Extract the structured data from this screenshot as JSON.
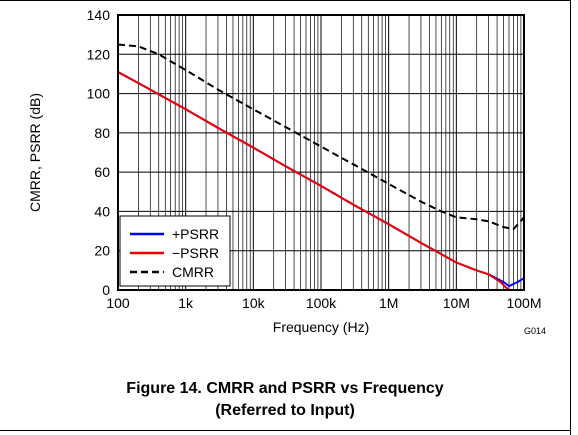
{
  "figure": {
    "caption_line1": "Figure 14. CMRR and PSRR vs Frequency",
    "caption_line2": "(Referred to Input)",
    "graph_id": "G014"
  },
  "chart_data": {
    "type": "line",
    "xlabel": "Frequency (Hz)",
    "ylabel": "CMRR, PSRR (dB)",
    "xscale": "log",
    "xlim": [
      100,
      100000000
    ],
    "ylim": [
      0,
      140
    ],
    "grid": true,
    "legend_position": "bottom-left",
    "x_ticks": [
      {
        "v": 100,
        "label": "100"
      },
      {
        "v": 1000,
        "label": "1k"
      },
      {
        "v": 10000,
        "label": "10k"
      },
      {
        "v": 100000,
        "label": "100k"
      },
      {
        "v": 1000000,
        "label": "1M"
      },
      {
        "v": 10000000,
        "label": "10M"
      },
      {
        "v": 100000000,
        "label": "100M"
      }
    ],
    "y_ticks": [
      {
        "v": 0,
        "label": "0"
      },
      {
        "v": 20,
        "label": "20"
      },
      {
        "v": 40,
        "label": "40"
      },
      {
        "v": 60,
        "label": "60"
      },
      {
        "v": 80,
        "label": "80"
      },
      {
        "v": 100,
        "label": "100"
      },
      {
        "v": 120,
        "label": "120"
      },
      {
        "v": 140,
        "label": "140"
      }
    ],
    "series": [
      {
        "name": "+PSRR",
        "color": "#0000ee",
        "dash": "solid",
        "points": [
          [
            100,
            111
          ],
          [
            300,
            102
          ],
          [
            1000,
            92
          ],
          [
            3000,
            82.5
          ],
          [
            10000,
            72.5
          ],
          [
            30000,
            63
          ],
          [
            100000,
            53
          ],
          [
            300000,
            43.5
          ],
          [
            1000000,
            33.5
          ],
          [
            3000000,
            24
          ],
          [
            10000000,
            14
          ],
          [
            20000000,
            10
          ],
          [
            30000000,
            8
          ],
          [
            50000000,
            4
          ],
          [
            60000000,
            2
          ],
          [
            80000000,
            4
          ],
          [
            100000000,
            6
          ]
        ]
      },
      {
        "name": "−PSRR",
        "color": "#ee0000",
        "dash": "solid",
        "points": [
          [
            100,
            111
          ],
          [
            300,
            102
          ],
          [
            1000,
            92
          ],
          [
            3000,
            82.5
          ],
          [
            10000,
            72.5
          ],
          [
            30000,
            63
          ],
          [
            100000,
            53
          ],
          [
            300000,
            43.5
          ],
          [
            1000000,
            33.5
          ],
          [
            3000000,
            24
          ],
          [
            10000000,
            14
          ],
          [
            20000000,
            10
          ],
          [
            30000000,
            8
          ],
          [
            45000000,
            4
          ],
          [
            55000000,
            1
          ],
          [
            60000000,
            0.5
          ]
        ]
      },
      {
        "name": "CMRR",
        "color": "#000000",
        "dash": "dashed",
        "points": [
          [
            100,
            125
          ],
          [
            200,
            124
          ],
          [
            400,
            120
          ],
          [
            1000,
            112
          ],
          [
            3000,
            102
          ],
          [
            10000,
            92
          ],
          [
            30000,
            83
          ],
          [
            100000,
            73
          ],
          [
            300000,
            64
          ],
          [
            1000000,
            54
          ],
          [
            3000000,
            45
          ],
          [
            6000000,
            40
          ],
          [
            10000000,
            37
          ],
          [
            20000000,
            36
          ],
          [
            30000000,
            35
          ],
          [
            50000000,
            32
          ],
          [
            70000000,
            31
          ],
          [
            100000000,
            37
          ]
        ]
      }
    ]
  }
}
